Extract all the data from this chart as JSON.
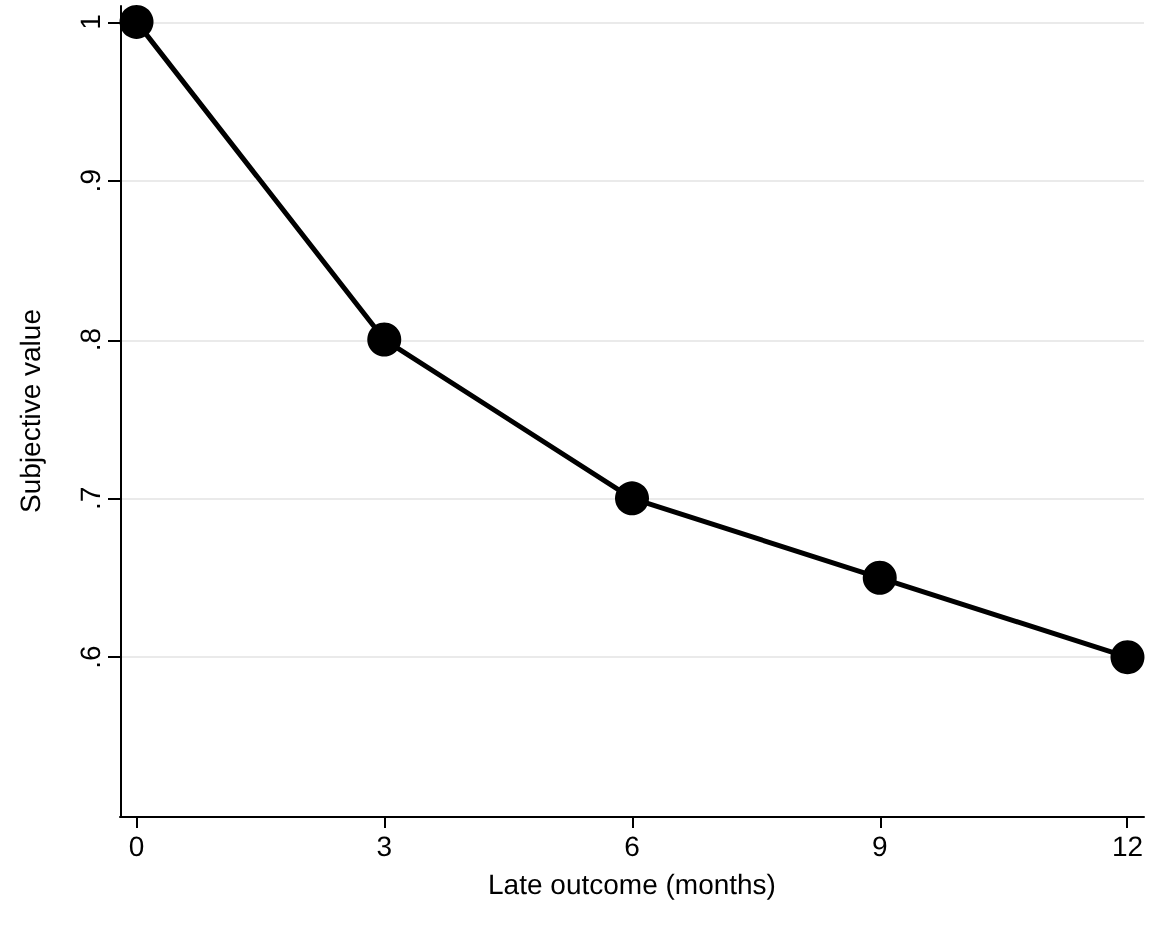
{
  "chart_data": {
    "type": "line",
    "xlabel": "Late outcome (months)",
    "ylabel": "Subjective value",
    "x": [
      0,
      3,
      6,
      9,
      12
    ],
    "series": [
      {
        "color": "#000000",
        "values": [
          1,
          0.8,
          0.7,
          0.65,
          0.6
        ]
      }
    ],
    "xlim": [
      -0.2,
      12.2
    ],
    "xticks": [
      0,
      3,
      6,
      9,
      12
    ],
    "ylim": [
      0.5,
      1.01
    ],
    "yticks": [
      {
        "value": 0.6,
        "label": ".6"
      },
      {
        "value": 0.7,
        "label": ".7"
      },
      {
        "value": 0.8,
        "label": ".8"
      },
      {
        "value": 0.9,
        "label": ".9"
      },
      1
    ],
    "grid": "y",
    "marker": "circle",
    "line_style": "solid"
  }
}
